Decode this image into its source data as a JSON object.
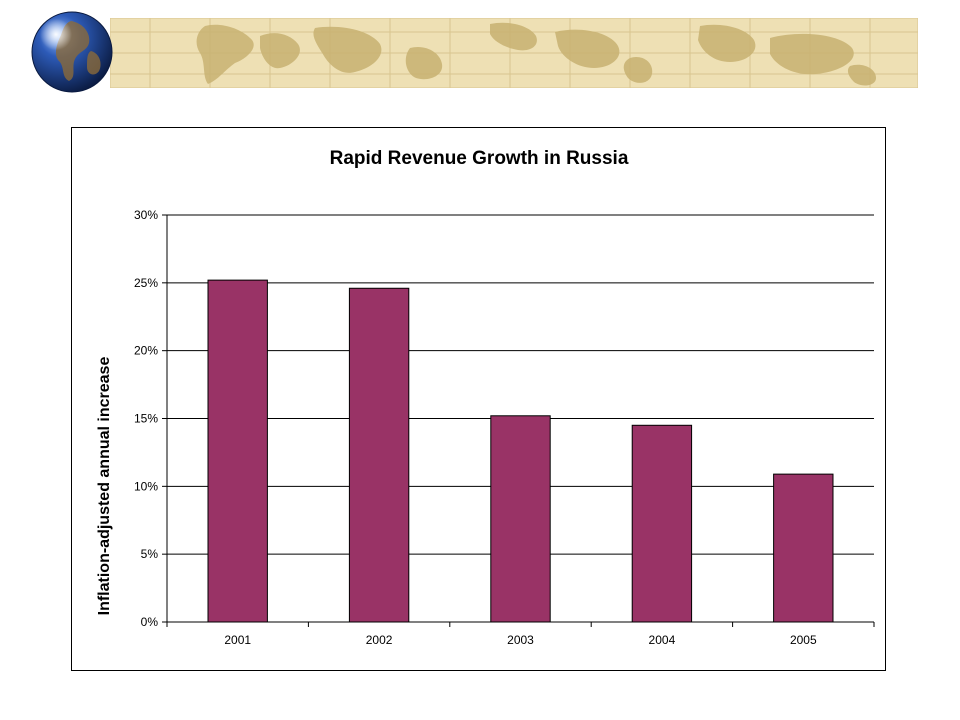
{
  "colors": {
    "bar_fill": "#993366",
    "bar_stroke": "#000000",
    "gridline": "#000000",
    "banner_parchment": "#eee0b4",
    "banner_land": "#c8b272",
    "banner_grid": "#d8c58f",
    "globe_ocean": "#1f3f8a",
    "globe_land": "#8a6a3a"
  },
  "decor": {
    "globe_icon": "globe-icon",
    "banner_icon": "world-map-banner"
  },
  "chart_data": {
    "type": "bar",
    "title": "Rapid Revenue Growth in Russia",
    "xlabel": "",
    "ylabel": "Inflation-adjusted annual increase",
    "categories": [
      "2001",
      "2002",
      "2003",
      "2004",
      "2005"
    ],
    "values": [
      0.252,
      0.246,
      0.152,
      0.145,
      0.109
    ],
    "ylim": [
      0,
      0.3
    ],
    "yticks": [
      {
        "value": 0,
        "label": "0%"
      },
      {
        "value": 0.05,
        "label": "5%"
      },
      {
        "value": 0.1,
        "label": "10%"
      },
      {
        "value": 0.15,
        "label": "15%"
      },
      {
        "value": 0.2,
        "label": "20%"
      },
      {
        "value": 0.25,
        "label": "25%"
      },
      {
        "value": 0.3,
        "label": "30%"
      }
    ],
    "grid": true,
    "legend": "none"
  }
}
